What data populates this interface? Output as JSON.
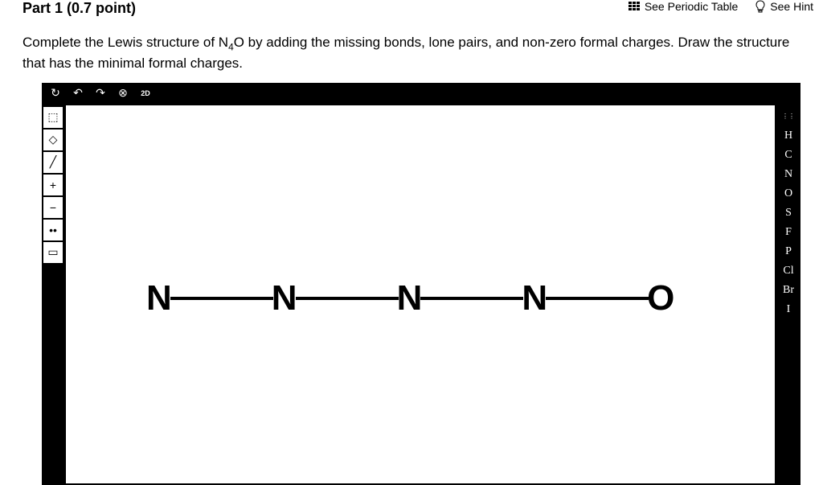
{
  "header": {
    "part_label": "Part 1   (0.7 point)",
    "periodic_table_label": "See Periodic Table",
    "hint_label": "See Hint"
  },
  "instructions": {
    "text_before_formula": "Complete the Lewis structure of N",
    "formula_sub": "4",
    "text_after_formula": "O by adding the missing bonds, lone pairs, and non-zero formal charges. Draw the structure that has the minimal formal charges."
  },
  "top_toolbar": {
    "tools": [
      "↻",
      "↶",
      "↷",
      "⊗",
      "2D"
    ]
  },
  "left_toolbar": {
    "tools": [
      {
        "name": "select-tool",
        "glyph": "⬚"
      },
      {
        "name": "eraser-tool",
        "glyph": "◇"
      },
      {
        "name": "bond-tool",
        "glyph": "╱"
      },
      {
        "name": "charge-plus-tool",
        "glyph": "+"
      },
      {
        "name": "charge-minus-tool",
        "glyph": "−"
      },
      {
        "name": "lone-pair-tool",
        "glyph": "••"
      },
      {
        "name": "rect-tool",
        "glyph": "▭"
      }
    ]
  },
  "right_toolbar": {
    "elements": [
      "",
      "H",
      "C",
      "N",
      "O",
      "S",
      "F",
      "P",
      "Cl",
      "Br",
      "I"
    ]
  },
  "molecule": {
    "atoms": [
      "N",
      "N",
      "N",
      "N",
      "O"
    ]
  }
}
